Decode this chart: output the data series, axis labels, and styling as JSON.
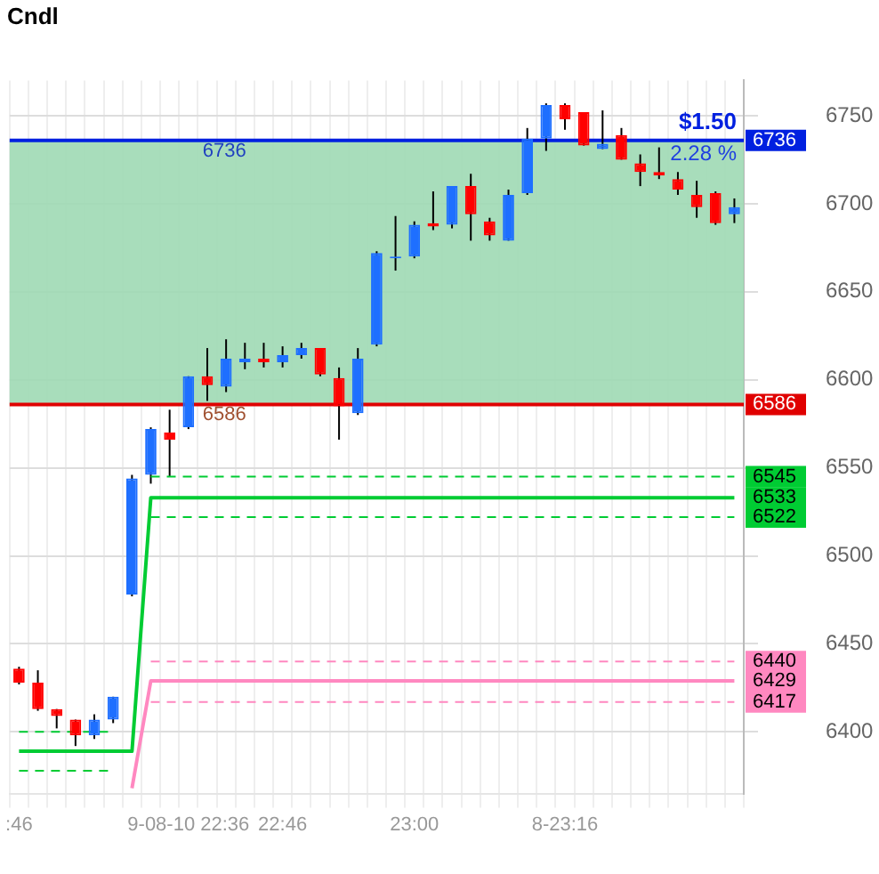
{
  "chart_data": {
    "type": "candlestick",
    "categories": [
      ":46",
      null,
      null,
      null,
      null,
      null,
      null,
      null,
      null,
      "9-08-10 22:36",
      null,
      null,
      null,
      null,
      "22:46",
      null,
      null,
      null,
      null,
      null,
      null,
      "23:00",
      null,
      null,
      null,
      null,
      null,
      null,
      null,
      "8-23:16",
      null,
      null,
      null,
      null,
      null,
      null,
      null,
      null,
      null
    ],
    "ylim": [
      6365,
      6770
    ],
    "yticks": [
      6400,
      6450,
      6500,
      6550,
      6600,
      6650,
      6700,
      6750
    ],
    "grid": true,
    "legend": false,
    "series": [
      {
        "type": "candlestick",
        "ohlc": [
          [
            6436,
            6437,
            6427,
            6428
          ],
          [
            6428,
            6435,
            6412,
            6413
          ],
          [
            6413,
            6413,
            6402,
            6409
          ],
          [
            6407,
            6407,
            6392,
            6398
          ],
          [
            6398,
            6410,
            6396,
            6407
          ],
          [
            6407,
            6420,
            6405,
            6420
          ],
          [
            6478,
            6546,
            6477,
            6544
          ],
          [
            6546,
            6573,
            6541,
            6572
          ],
          [
            6570,
            6583,
            6545,
            6566
          ],
          [
            6573,
            6602,
            6572,
            6602
          ],
          [
            6602,
            6618,
            6588,
            6597
          ],
          [
            6596,
            6623,
            6593,
            6612
          ],
          [
            6610,
            6621,
            6606,
            6612
          ],
          [
            6612,
            6621,
            6607,
            6610
          ],
          [
            6610,
            6619,
            6607,
            6614
          ],
          [
            6614,
            6621,
            6612,
            6618
          ],
          [
            6618,
            6618,
            6602,
            6603
          ],
          [
            6601,
            6607,
            6566,
            6585
          ],
          [
            6581,
            6618,
            6580,
            6612
          ],
          [
            6620,
            6673,
            6619,
            6672
          ],
          [
            6669,
            6693,
            6662,
            6670
          ],
          [
            6670,
            6690,
            6669,
            6688
          ],
          [
            6689,
            6707,
            6685,
            6687
          ],
          [
            6688,
            6710,
            6686,
            6710
          ],
          [
            6710,
            6717,
            6679,
            6694
          ],
          [
            6690,
            6692,
            6679,
            6682
          ],
          [
            6679,
            6708,
            6679,
            6705
          ],
          [
            6706,
            6743,
            6705,
            6737
          ],
          [
            6737,
            6757,
            6730,
            6756
          ],
          [
            6756,
            6757,
            6742,
            6748
          ],
          [
            6752,
            6752,
            6733,
            6733
          ],
          [
            6731,
            6753,
            6731,
            6734
          ],
          [
            6739,
            6743,
            6725,
            6725
          ],
          [
            6723,
            6728,
            6710,
            6718
          ],
          [
            6718,
            6732,
            6714,
            6716
          ],
          [
            6714,
            6718,
            6705,
            6708
          ],
          [
            6705,
            6713,
            6692,
            6698
          ],
          [
            6706,
            6707,
            6688,
            6689
          ],
          [
            6694,
            6703,
            6689,
            6698
          ]
        ],
        "colors": [
          "#ff0000",
          "#ff0000",
          "#ff0000",
          "#ff0000",
          "#1e6fff",
          "#1e6fff",
          "#1e6fff",
          "#1e6fff",
          "#ff0000",
          "#1e6fff",
          "#ff0000",
          "#1e6fff",
          "#1e6fff",
          "#ff0000",
          "#1e6fff",
          "#1e6fff",
          "#ff0000",
          "#ff0000",
          "#1e6fff",
          "#1e6fff",
          "#1e6fff",
          "#1e6fff",
          "#ff0000",
          "#1e6fff",
          "#ff0000",
          "#ff0000",
          "#1e6fff",
          "#1e6fff",
          "#1e6fff",
          "#ff0000",
          "#ff0000",
          "#1e6fff",
          "#ff0000",
          "#ff0000",
          "#ff0000",
          "#ff0000",
          "#ff0000",
          "#ff0000",
          "#1e6fff"
        ]
      },
      {
        "type": "line",
        "color": "#00cc33",
        "line_style": "solid",
        "values": [
          6389,
          6389,
          6389,
          6389,
          6389,
          6389,
          6389,
          6533,
          6533,
          6533,
          6533,
          6533,
          6533,
          6533,
          6533,
          6533,
          6533,
          6533,
          6533,
          6533,
          6533,
          6533,
          6533,
          6533,
          6533,
          6533,
          6533,
          6533,
          6533,
          6533,
          6533,
          6533,
          6533,
          6533,
          6533,
          6533,
          6533,
          6533,
          6533
        ],
        "value_labels": [
          null,
          null,
          null,
          null,
          null,
          null,
          null,
          null,
          null,
          null,
          null,
          null,
          null,
          null,
          null,
          null,
          null,
          null,
          null,
          null,
          null,
          null,
          null,
          null,
          null,
          null,
          null,
          null,
          null,
          null,
          null,
          null,
          null,
          null,
          null,
          null,
          null,
          null,
          "6533"
        ]
      },
      {
        "type": "line",
        "color": "#00cc33",
        "line_style": "dashed",
        "values": [
          6400,
          6400,
          6400,
          6400,
          6400,
          6400,
          null,
          6545,
          6545,
          6545,
          6545,
          6545,
          6545,
          6545,
          6545,
          6545,
          6545,
          6545,
          6545,
          6545,
          6545,
          6545,
          6545,
          6545,
          6545,
          6545,
          6545,
          6545,
          6545,
          6545,
          6545,
          6545,
          6545,
          6545,
          6545,
          6545,
          6545,
          6545,
          6545
        ],
        "value_labels": [
          null,
          null,
          null,
          null,
          null,
          null,
          null,
          null,
          null,
          null,
          null,
          null,
          null,
          null,
          null,
          null,
          null,
          null,
          null,
          null,
          null,
          null,
          null,
          null,
          null,
          null,
          null,
          null,
          null,
          null,
          null,
          null,
          null,
          null,
          null,
          null,
          null,
          null,
          "6545"
        ]
      },
      {
        "type": "line",
        "color": "#00cc33",
        "line_style": "dashed",
        "values": [
          6378,
          6378,
          6378,
          6378,
          6378,
          6378,
          null,
          6522,
          6522,
          6522,
          6522,
          6522,
          6522,
          6522,
          6522,
          6522,
          6522,
          6522,
          6522,
          6522,
          6522,
          6522,
          6522,
          6522,
          6522,
          6522,
          6522,
          6522,
          6522,
          6522,
          6522,
          6522,
          6522,
          6522,
          6522,
          6522,
          6522,
          6522,
          6522
        ],
        "value_labels": [
          null,
          null,
          null,
          null,
          null,
          null,
          null,
          null,
          null,
          null,
          null,
          null,
          null,
          null,
          null,
          null,
          null,
          null,
          null,
          null,
          null,
          null,
          null,
          null,
          null,
          null,
          null,
          null,
          null,
          null,
          null,
          null,
          null,
          null,
          null,
          null,
          null,
          null,
          "6522"
        ]
      },
      {
        "type": "line",
        "color": "#ff88c0",
        "line_style": "solid",
        "values": [
          null,
          null,
          null,
          null,
          null,
          null,
          6368,
          6429,
          6429,
          6429,
          6429,
          6429,
          6429,
          6429,
          6429,
          6429,
          6429,
          6429,
          6429,
          6429,
          6429,
          6429,
          6429,
          6429,
          6429,
          6429,
          6429,
          6429,
          6429,
          6429,
          6429,
          6429,
          6429,
          6429,
          6429,
          6429,
          6429,
          6429,
          6429
        ],
        "value_labels": [
          null,
          null,
          null,
          null,
          null,
          null,
          null,
          null,
          null,
          null,
          null,
          null,
          null,
          null,
          null,
          null,
          null,
          null,
          null,
          null,
          null,
          null,
          null,
          null,
          null,
          null,
          null,
          null,
          null,
          null,
          null,
          null,
          null,
          null,
          null,
          null,
          null,
          null,
          "6429"
        ]
      },
      {
        "type": "line",
        "color": "#ff88c0",
        "line_style": "dashed",
        "values": [
          null,
          null,
          null,
          null,
          null,
          null,
          null,
          6440,
          6440,
          6440,
          6440,
          6440,
          6440,
          6440,
          6440,
          6440,
          6440,
          6440,
          6440,
          6440,
          6440,
          6440,
          6440,
          6440,
          6440,
          6440,
          6440,
          6440,
          6440,
          6440,
          6440,
          6440,
          6440,
          6440,
          6440,
          6440,
          6440,
          6440,
          6440
        ],
        "value_labels": [
          null,
          null,
          null,
          null,
          null,
          null,
          null,
          null,
          null,
          null,
          null,
          null,
          null,
          null,
          null,
          null,
          null,
          null,
          null,
          null,
          null,
          null,
          null,
          null,
          null,
          null,
          null,
          null,
          null,
          null,
          null,
          null,
          null,
          null,
          null,
          null,
          null,
          null,
          "6440"
        ]
      },
      {
        "type": "line",
        "color": "#ff88c0",
        "line_style": "dashed",
        "values": [
          null,
          null,
          null,
          null,
          null,
          null,
          null,
          6417,
          6417,
          6417,
          6417,
          6417,
          6417,
          6417,
          6417,
          6417,
          6417,
          6417,
          6417,
          6417,
          6417,
          6417,
          6417,
          6417,
          6417,
          6417,
          6417,
          6417,
          6417,
          6417,
          6417,
          6417,
          6417,
          6417,
          6417,
          6417,
          6417,
          6417,
          6417
        ],
        "value_labels": [
          null,
          null,
          null,
          null,
          null,
          null,
          null,
          null,
          null,
          null,
          null,
          null,
          null,
          null,
          null,
          null,
          null,
          null,
          null,
          null,
          null,
          null,
          null,
          null,
          null,
          null,
          null,
          null,
          null,
          null,
          null,
          null,
          null,
          null,
          null,
          null,
          null,
          null,
          "6417"
        ]
      }
    ],
    "ref_lines": [
      {
        "axis": "y",
        "value": 6736,
        "label": "6736",
        "color": "#0020e0"
      },
      {
        "axis": "y",
        "value": 6586,
        "label": "6586",
        "color": "#e00000"
      }
    ],
    "bands": [
      {
        "axis": "y",
        "from": 6586,
        "to": 6736,
        "color": "#9fd9b4"
      }
    ],
    "annotations": [
      "Cndl",
      {
        "text": "$1.50",
        "y": 6736
      },
      {
        "text": "2.28 %",
        "y": 6736
      },
      {
        "text": "6736",
        "x": "9-08-10 22:36",
        "y": 6736
      },
      {
        "text": "6586",
        "x": "9-08-10 22:36",
        "y": 6586
      }
    ]
  }
}
